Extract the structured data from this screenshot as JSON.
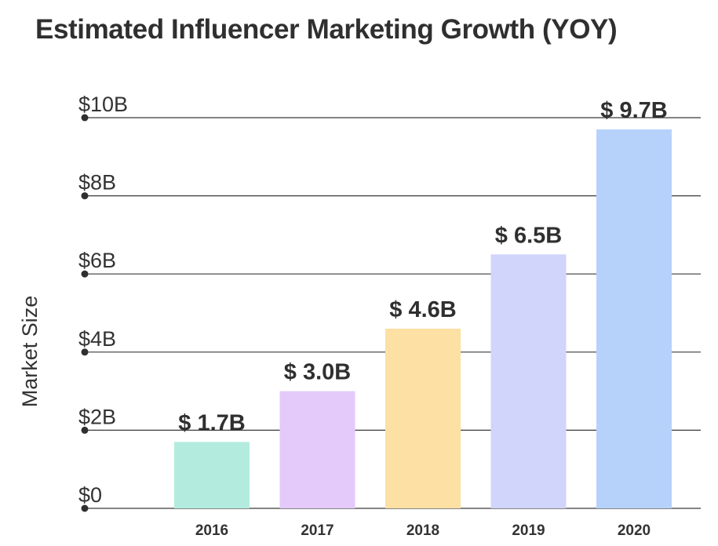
{
  "chart_data": {
    "type": "bar",
    "title": "Estimated Influencer Marketing Growth (YOY)",
    "xlabel": "",
    "ylabel": "Market Size",
    "categories": [
      "2016",
      "2017",
      "2018",
      "2019",
      "2020"
    ],
    "values": [
      1.7,
      3.0,
      4.6,
      6.5,
      9.7
    ],
    "data_labels": [
      "$ 1.7B",
      "$ 3.0B",
      "$ 4.6B",
      "$ 6.5B",
      "$ 9.7B"
    ],
    "unit": "billion USD",
    "ylim": [
      0,
      10
    ],
    "yticks": [
      0,
      2,
      4,
      6,
      8,
      10
    ],
    "ytick_labels": [
      "$0",
      "$2B",
      "$4B",
      "$6B",
      "$8B",
      "$10B"
    ],
    "grid": true,
    "legend": "none",
    "colors": [
      "#b3ecdf",
      "#e3cafb",
      "#fce0a4",
      "#d1d4fb",
      "#b6d2fb"
    ],
    "axis_color": "#3a3a3a",
    "text_color": "#2f2f2f"
  }
}
